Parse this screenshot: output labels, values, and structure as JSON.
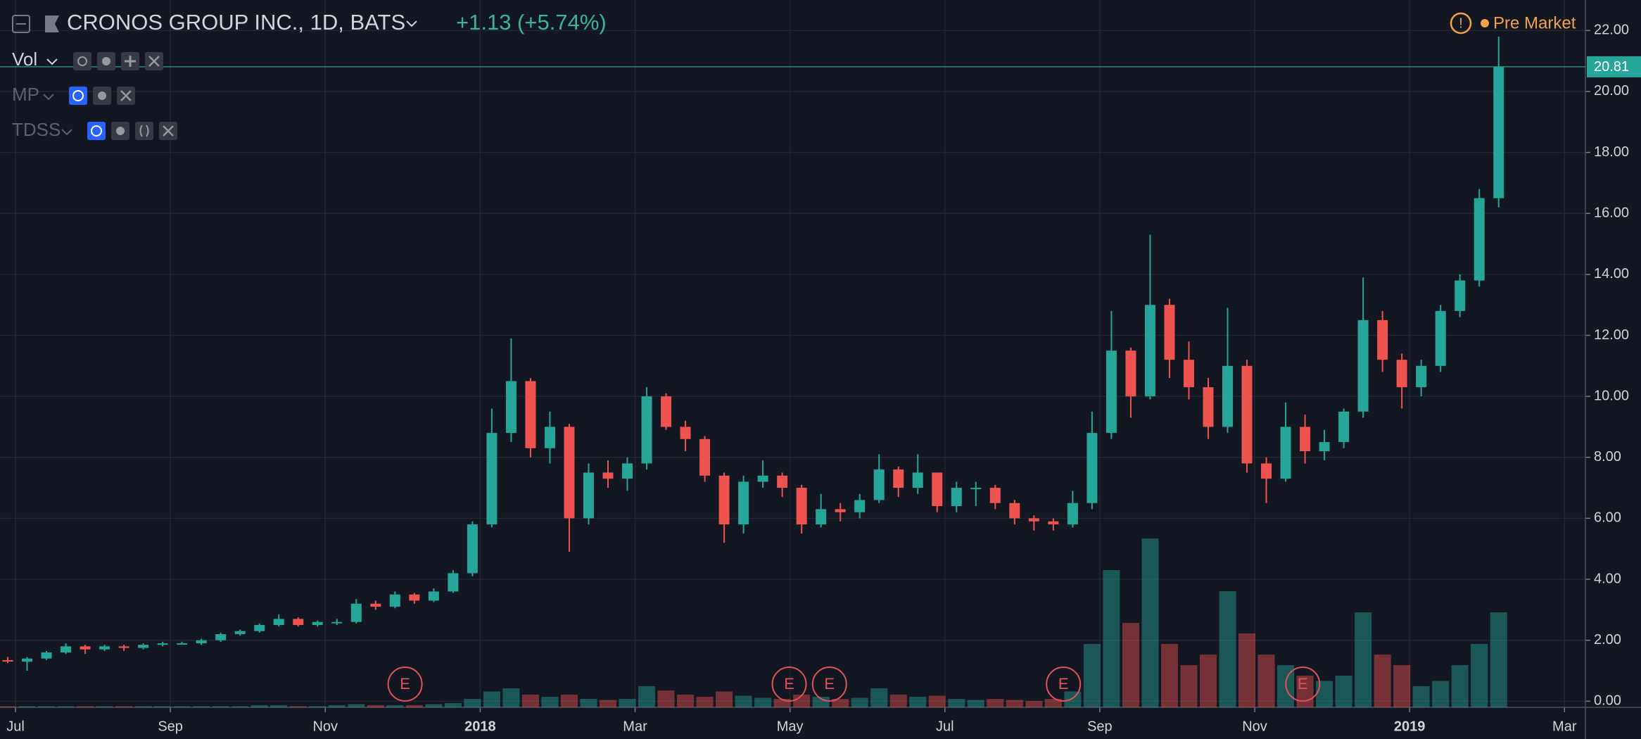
{
  "chart_data": {
    "type": "candlestick",
    "title": "CRONOS GROUP INC., 1D, BATS",
    "change": "+1.13 (+5.74%)",
    "session": "Pre Market",
    "indicators": [
      "Vol",
      "MP",
      "TDSS"
    ],
    "up_color": "#26a69a",
    "down_color": "#ef5350",
    "grid": true,
    "xlim": [
      -0.2,
      20.27
    ],
    "ylim": [
      -0.2,
      23
    ],
    "xticks": [
      {
        "value": 0,
        "label": "Jul"
      },
      {
        "value": 2,
        "label": "Sep"
      },
      {
        "value": 4,
        "label": "Nov"
      },
      {
        "value": 6,
        "label": "2018"
      },
      {
        "value": 8,
        "label": "Mar"
      },
      {
        "value": 10,
        "label": "May"
      },
      {
        "value": 12,
        "label": "Jul"
      },
      {
        "value": 14,
        "label": "Sep"
      },
      {
        "value": 16,
        "label": "Nov"
      },
      {
        "value": 18,
        "label": "2019"
      },
      {
        "value": 20,
        "label": "Mar"
      }
    ],
    "yticks": [
      {
        "value": 0,
        "label": "0.00"
      },
      {
        "value": 2,
        "label": "2.00"
      },
      {
        "value": 4,
        "label": "4.00"
      },
      {
        "value": 6,
        "label": "6.00"
      },
      {
        "value": 8,
        "label": "8.00"
      },
      {
        "value": 10,
        "label": "10.00"
      },
      {
        "value": 12,
        "label": "12.00"
      },
      {
        "value": 14,
        "label": "14.00"
      },
      {
        "value": 16,
        "label": "16.00"
      },
      {
        "value": 18,
        "label": "18.00"
      },
      {
        "value": 20,
        "label": "20.00"
      },
      {
        "value": 22,
        "label": "22.00"
      }
    ],
    "last_price": {
      "value": 20.81,
      "label": "20.81"
    },
    "x": [
      -0.1,
      0.15,
      0.4,
      0.65,
      0.9,
      1.15,
      1.4,
      1.65,
      1.9,
      2.15,
      2.4,
      2.65,
      2.9,
      3.15,
      3.4,
      3.65,
      3.9,
      4.15,
      4.4,
      4.65,
      4.9,
      5.15,
      5.4,
      5.65,
      5.9,
      6.15,
      6.4,
      6.65,
      6.9,
      7.15,
      7.4,
      7.65,
      7.9,
      8.15,
      8.4,
      8.65,
      8.9,
      9.15,
      9.4,
      9.65,
      9.9,
      10.15,
      10.4,
      10.65,
      10.9,
      11.15,
      11.4,
      11.65,
      11.9,
      12.15,
      12.4,
      12.65,
      12.9,
      13.15,
      13.4,
      13.65,
      13.9,
      14.15,
      14.4,
      14.65,
      14.9,
      15.15,
      15.4,
      15.65,
      15.9,
      16.15,
      16.4,
      16.65,
      16.9,
      17.15,
      17.4,
      17.65,
      17.9,
      18.15,
      18.4,
      18.65,
      18.9,
      19.15
    ],
    "open": [
      1.35,
      1.3,
      1.4,
      1.6,
      1.8,
      1.7,
      1.8,
      1.75,
      1.85,
      1.9,
      1.9,
      2.0,
      2.2,
      2.3,
      2.5,
      2.7,
      2.5,
      2.6,
      2.6,
      3.2,
      3.1,
      3.5,
      3.3,
      3.6,
      4.2,
      5.8,
      8.8,
      10.5,
      8.3,
      9.0,
      6.0,
      7.5,
      7.3,
      7.8,
      10.0,
      9.0,
      8.6,
      7.4,
      5.8,
      7.2,
      7.4,
      7.0,
      5.8,
      6.3,
      6.2,
      6.6,
      7.6,
      7.0,
      7.5,
      6.4,
      7.0,
      7.0,
      6.5,
      6.0,
      5.9,
      5.8,
      6.5,
      8.8,
      11.5,
      10.0,
      13.0,
      11.2,
      10.3,
      9.0,
      11.0,
      7.8,
      7.3,
      9.0,
      8.2,
      8.5,
      9.5,
      12.5,
      11.2,
      10.3,
      11.0,
      12.8,
      13.8,
      16.5
    ],
    "high": [
      1.45,
      1.45,
      1.65,
      1.9,
      1.85,
      1.85,
      1.85,
      1.9,
      1.95,
      1.95,
      2.05,
      2.25,
      2.35,
      2.55,
      2.85,
      2.75,
      2.65,
      2.7,
      3.35,
      3.3,
      3.6,
      3.55,
      3.7,
      4.3,
      5.9,
      9.6,
      11.9,
      10.6,
      9.5,
      9.1,
      7.8,
      7.9,
      8.0,
      10.3,
      10.1,
      9.2,
      8.7,
      7.5,
      7.4,
      7.9,
      7.5,
      7.1,
      6.8,
      6.5,
      6.8,
      8.1,
      7.7,
      8.1,
      7.5,
      7.2,
      7.2,
      7.1,
      6.6,
      6.1,
      6.0,
      6.9,
      9.5,
      12.8,
      11.6,
      15.3,
      13.2,
      11.8,
      10.6,
      12.9,
      11.2,
      8.0,
      9.8,
      9.4,
      8.9,
      9.6,
      13.9,
      12.8,
      11.4,
      11.2,
      13.0,
      14.0,
      16.8,
      21.8
    ],
    "low": [
      1.25,
      1.0,
      1.35,
      1.55,
      1.55,
      1.65,
      1.65,
      1.7,
      1.8,
      1.85,
      1.85,
      1.95,
      2.15,
      2.25,
      2.45,
      2.45,
      2.45,
      2.5,
      2.55,
      3.0,
      3.05,
      3.2,
      3.25,
      3.55,
      4.1,
      5.7,
      8.5,
      8.0,
      7.8,
      4.9,
      5.8,
      7.0,
      6.9,
      7.6,
      8.9,
      8.2,
      7.2,
      5.2,
      5.5,
      7.0,
      6.7,
      5.5,
      5.7,
      5.9,
      6.0,
      6.5,
      6.7,
      6.8,
      6.2,
      6.2,
      6.4,
      6.3,
      5.8,
      5.6,
      5.6,
      5.7,
      6.3,
      8.6,
      9.3,
      9.9,
      10.6,
      9.9,
      8.6,
      8.8,
      7.5,
      6.5,
      7.2,
      7.8,
      7.9,
      8.3,
      9.3,
      10.8,
      9.6,
      10.0,
      10.8,
      12.6,
      13.6,
      16.2
    ],
    "close": [
      1.3,
      1.4,
      1.6,
      1.8,
      1.7,
      1.8,
      1.75,
      1.85,
      1.9,
      1.9,
      2.0,
      2.2,
      2.3,
      2.5,
      2.7,
      2.5,
      2.6,
      2.6,
      3.2,
      3.1,
      3.5,
      3.3,
      3.6,
      4.2,
      5.8,
      8.8,
      10.5,
      8.3,
      9.0,
      6.0,
      7.5,
      7.3,
      7.8,
      10.0,
      9.0,
      8.6,
      7.4,
      5.8,
      7.2,
      7.4,
      7.0,
      5.8,
      6.3,
      6.2,
      6.6,
      7.6,
      7.0,
      7.5,
      6.4,
      7.0,
      7.0,
      6.5,
      6.0,
      5.9,
      5.8,
      6.5,
      8.8,
      11.5,
      10.0,
      13.0,
      11.2,
      10.3,
      9.0,
      11.0,
      7.8,
      7.3,
      9.0,
      8.2,
      8.5,
      9.5,
      12.5,
      11.2,
      10.3,
      11.0,
      12.8,
      13.8,
      16.5,
      20.81
    ],
    "volume": [
      0.1,
      0.1,
      0.1,
      0.1,
      0.1,
      0.1,
      0.1,
      0.1,
      0.1,
      0.1,
      0.1,
      0.1,
      0.1,
      0.2,
      0.2,
      0.1,
      0.1,
      0.2,
      0.3,
      0.2,
      0.2,
      0.2,
      0.3,
      0.4,
      0.8,
      1.5,
      1.8,
      1.2,
      1.0,
      1.2,
      0.8,
      0.7,
      0.8,
      2.0,
      1.6,
      1.2,
      1.0,
      1.5,
      1.1,
      0.9,
      0.8,
      1.2,
      1.0,
      0.8,
      0.9,
      1.8,
      1.2,
      1.0,
      1.1,
      0.8,
      0.7,
      0.8,
      0.7,
      0.6,
      0.8,
      1.5,
      6.0,
      13.0,
      8.0,
      16.0,
      6.0,
      4.0,
      5.0,
      11.0,
      7.0,
      5.0,
      4.0,
      3.0,
      2.5,
      3.0,
      9.0,
      5.0,
      4.0,
      2.0,
      2.5,
      4.0,
      6.0,
      9.0
    ],
    "earnings": {
      "x": [
        5.03,
        9.99,
        10.51,
        13.53,
        16.62
      ],
      "labels": [
        "E",
        "E",
        "E",
        "E",
        "E"
      ]
    }
  }
}
